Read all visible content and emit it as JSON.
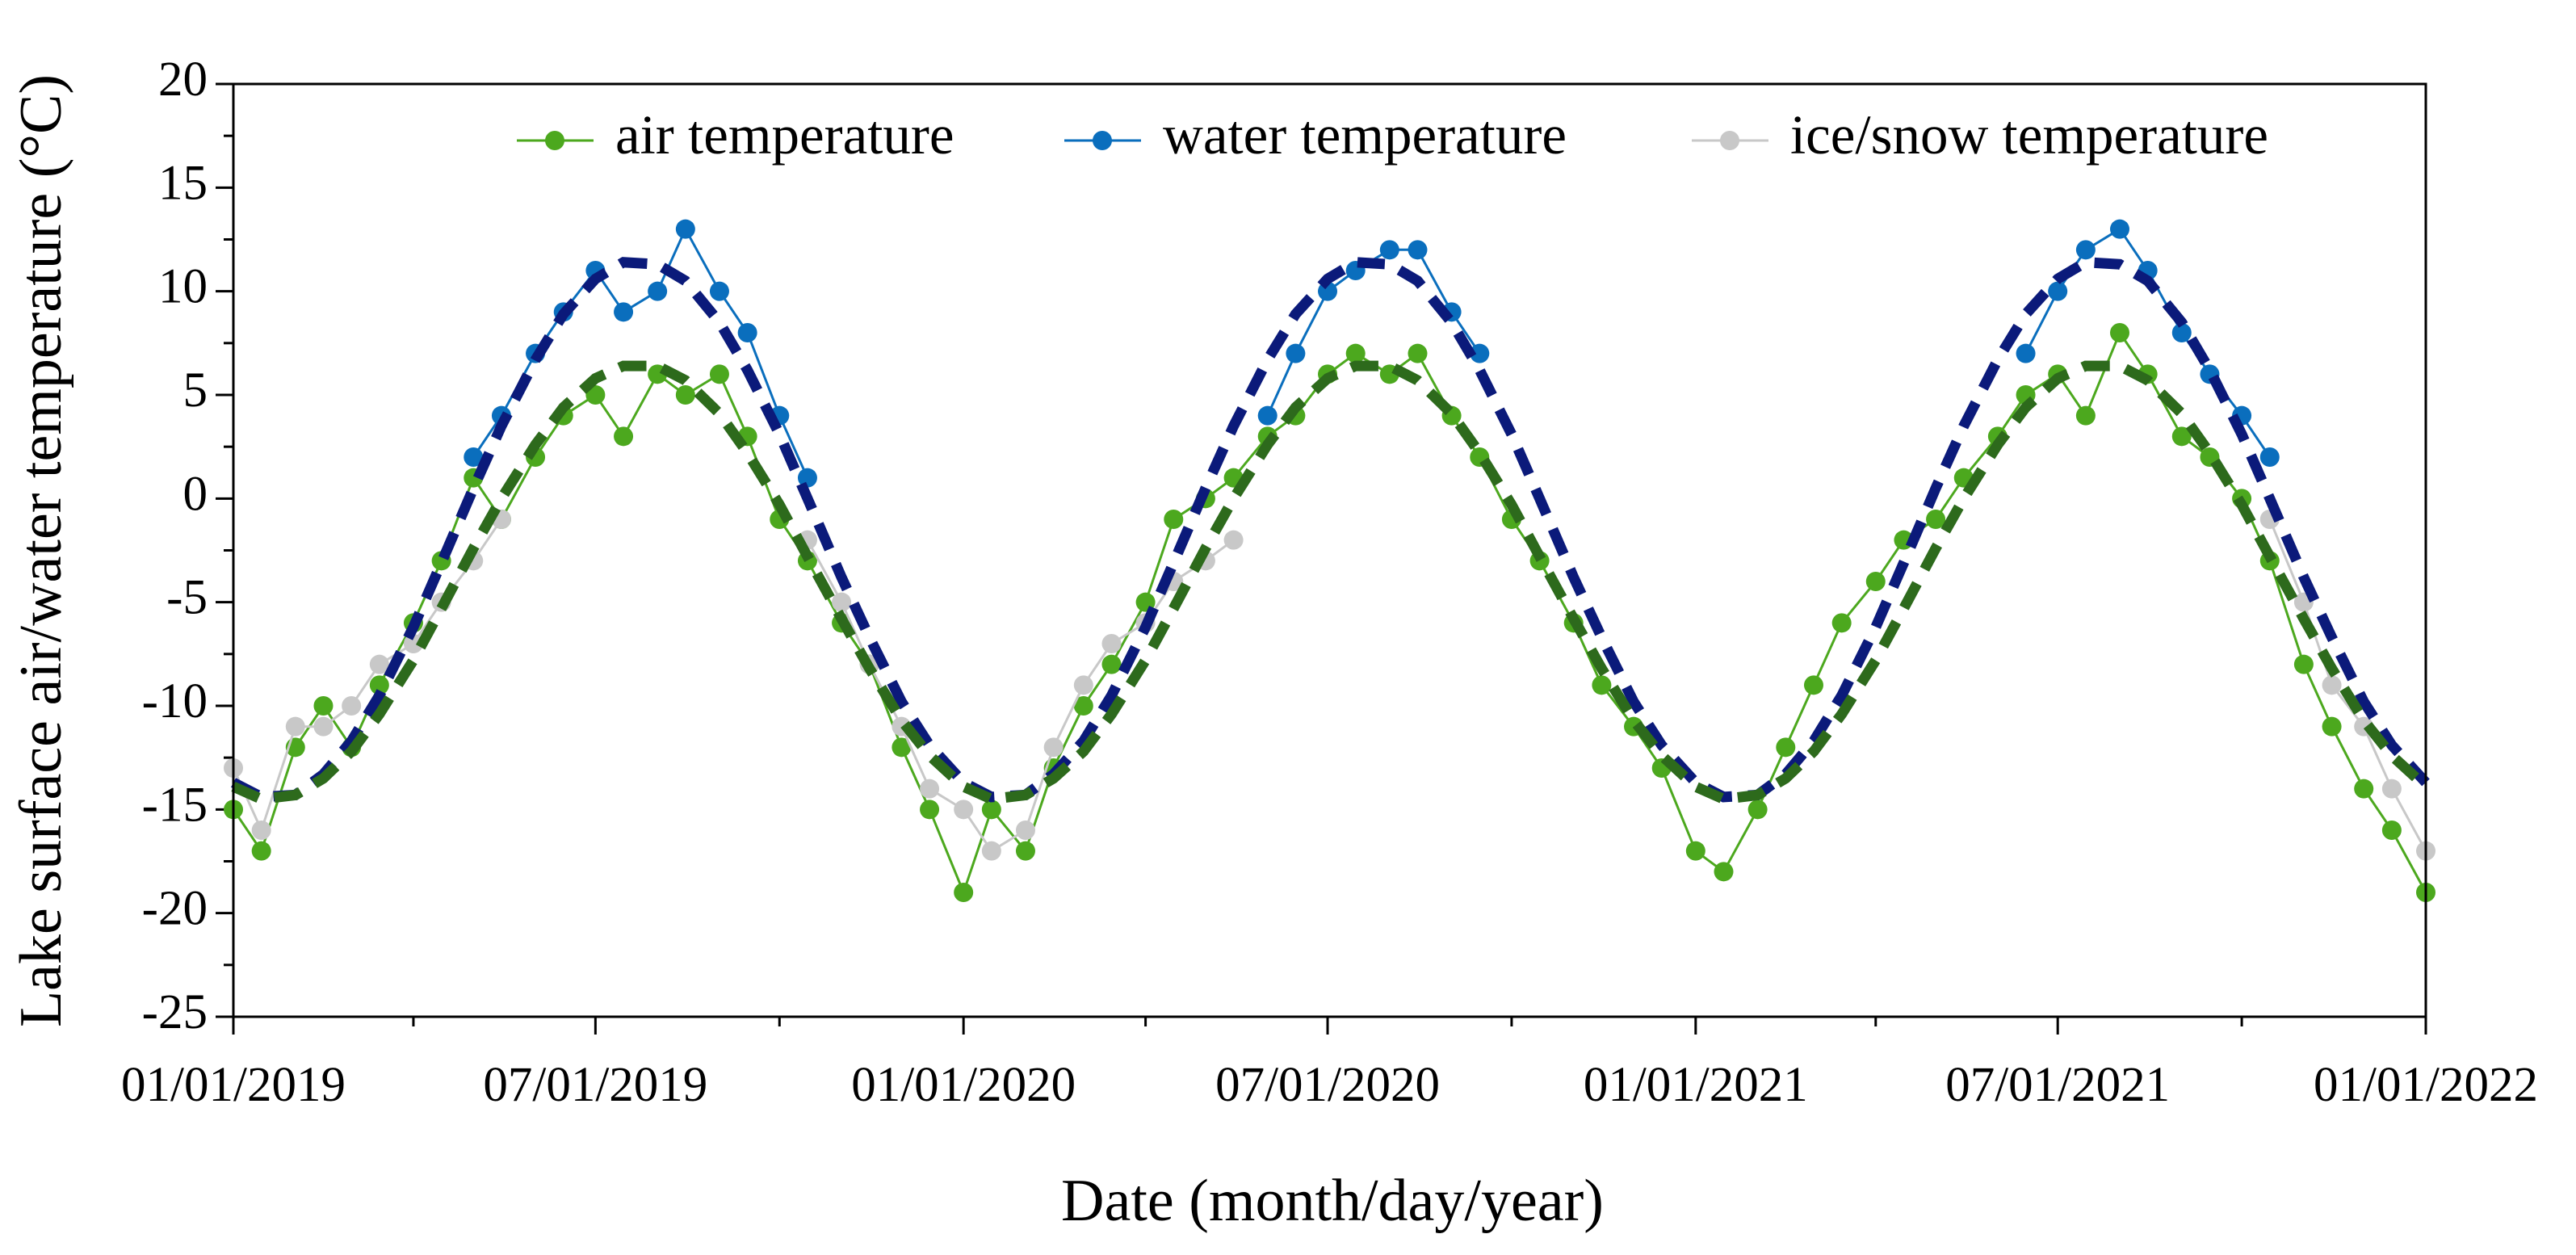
{
  "chart_data": {
    "type": "line",
    "xlabel": "Date (month/day/year)",
    "ylabel": "Lake surface air/water temperature (°C)",
    "x": [
      "01/01/2019",
      "01/15/2019",
      "02/01/2019",
      "02/15/2019",
      "03/01/2019",
      "03/15/2019",
      "04/01/2019",
      "04/15/2019",
      "05/01/2019",
      "05/15/2019",
      "06/01/2019",
      "06/15/2019",
      "07/01/2019",
      "07/15/2019",
      "08/01/2019",
      "08/15/2019",
      "09/01/2019",
      "09/15/2019",
      "10/01/2019",
      "10/15/2019",
      "11/01/2019",
      "11/15/2019",
      "12/01/2019",
      "12/15/2019",
      "01/01/2020",
      "01/15/2020",
      "02/01/2020",
      "02/15/2020",
      "03/01/2020",
      "03/15/2020",
      "04/01/2020",
      "04/15/2020",
      "05/01/2020",
      "05/15/2020",
      "06/01/2020",
      "06/15/2020",
      "07/01/2020",
      "07/15/2020",
      "08/01/2020",
      "08/15/2020",
      "09/01/2020",
      "09/15/2020",
      "10/01/2020",
      "10/15/2020",
      "11/01/2020",
      "11/15/2020",
      "12/01/2020",
      "12/15/2020",
      "01/01/2021",
      "01/15/2021",
      "02/01/2021",
      "02/15/2021",
      "03/01/2021",
      "03/15/2021",
      "04/01/2021",
      "04/15/2021",
      "05/01/2021",
      "05/15/2021",
      "06/01/2021",
      "06/15/2021",
      "07/01/2021",
      "07/15/2021",
      "08/01/2021",
      "08/15/2021",
      "09/01/2021",
      "09/15/2021",
      "10/01/2021",
      "10/15/2021",
      "11/01/2021",
      "11/15/2021",
      "12/01/2021",
      "12/15/2021",
      "01/01/2022"
    ],
    "series": [
      {
        "name": "air temperature",
        "color": "#4ca81e",
        "values": [
          -15,
          -17,
          -12,
          -10,
          -12,
          -9,
          -6,
          -3,
          1,
          -1,
          2,
          4,
          5,
          3,
          6,
          5,
          6,
          3,
          -1,
          -3,
          -6,
          -8,
          -12,
          -15,
          -19,
          -15,
          -17,
          -13,
          -10,
          -8,
          -5,
          -1,
          0,
          1,
          3,
          4,
          6,
          7,
          6,
          7,
          4,
          2,
          -1,
          -3,
          -6,
          -9,
          -11,
          -13,
          -17,
          -18,
          -15,
          -12,
          -9,
          -6,
          -4,
          -2,
          -1,
          1,
          3,
          5,
          6,
          4,
          8,
          6,
          3,
          2,
          0,
          -3,
          -8,
          -11,
          -14,
          -16,
          -19
        ]
      },
      {
        "name": "water temperature",
        "color": "#0a6ebd",
        "values": [
          null,
          null,
          null,
          null,
          null,
          null,
          null,
          null,
          2,
          4,
          7,
          9,
          11,
          9,
          10,
          13,
          10,
          8,
          4,
          1,
          null,
          null,
          null,
          null,
          null,
          null,
          null,
          null,
          null,
          null,
          null,
          null,
          null,
          null,
          4,
          7,
          10,
          11,
          12,
          12,
          9,
          7,
          null,
          null,
          null,
          null,
          null,
          null,
          null,
          null,
          null,
          null,
          null,
          null,
          null,
          null,
          null,
          null,
          null,
          7,
          10,
          12,
          13,
          11,
          8,
          6,
          4,
          2,
          null,
          null,
          null,
          null,
          null
        ]
      },
      {
        "name": "ice/snow temperature",
        "color": "#c8c8c8",
        "values": [
          -13,
          -16,
          -11,
          -11,
          -10,
          -8,
          -7,
          -5,
          -3,
          -1,
          null,
          null,
          null,
          null,
          null,
          null,
          null,
          null,
          null,
          -2,
          -5,
          -8,
          -11,
          -14,
          -15,
          -17,
          -16,
          -12,
          -9,
          -7,
          -6,
          -4,
          -3,
          -2,
          null,
          null,
          null,
          null,
          null,
          null,
          null,
          null,
          null,
          null,
          null,
          null,
          null,
          null,
          null,
          null,
          null,
          null,
          null,
          null,
          null,
          null,
          null,
          null,
          null,
          null,
          null,
          null,
          null,
          null,
          null,
          null,
          null,
          -1,
          -5,
          -9,
          -11,
          -14,
          -17
        ]
      },
      {
        "color": "#0b1a7a",
        "dashed": true,
        "values": [
          -13.7,
          -14.4,
          -14.3,
          -13.3,
          -11.7,
          -9.5,
          -6.2,
          -3.1,
          0.5,
          3.5,
          6.7,
          8.9,
          10.6,
          11.4,
          11.3,
          10.5,
          8.5,
          6.2,
          3.1,
          0,
          -3.8,
          -6.7,
          -9.8,
          -11.9,
          -13.7,
          -14.4,
          -14.3,
          -13.3,
          -11.7,
          -9.5,
          -6.2,
          -3.1,
          0.5,
          3.5,
          6.7,
          8.9,
          10.6,
          11.4,
          11.3,
          10.5,
          8.5,
          6.2,
          3.1,
          0,
          -3.8,
          -6.7,
          -9.8,
          -11.9,
          -13.7,
          -14.4,
          -14.3,
          -13.3,
          -11.7,
          -9.5,
          -6.2,
          -3.1,
          0.5,
          3.5,
          6.7,
          8.9,
          10.6,
          11.4,
          11.3,
          10.5,
          8.5,
          6.2,
          3.1,
          0,
          -3.8,
          -6.7,
          -9.8,
          -11.9,
          -13.7
        ]
      },
      {
        "color": "#2d6a1c",
        "dashed": true,
        "values": [
          -13.9,
          -14.5,
          -14.3,
          -13.5,
          -12.2,
          -10.4,
          -7.8,
          -5.3,
          -2.4,
          0,
          2.6,
          4.4,
          5.8,
          6.4,
          6.4,
          5.7,
          4.1,
          2.2,
          -0.3,
          -2.8,
          -5.8,
          -8.2,
          -10.7,
          -12.4,
          -13.9,
          -14.5,
          -14.3,
          -13.5,
          -12.2,
          -10.4,
          -7.8,
          -5.3,
          -2.4,
          0,
          2.6,
          4.4,
          5.8,
          6.4,
          6.4,
          5.7,
          4.1,
          2.2,
          -0.3,
          -2.8,
          -5.8,
          -8.2,
          -10.7,
          -12.4,
          -13.9,
          -14.5,
          -14.3,
          -13.5,
          -12.2,
          -10.4,
          -7.8,
          -5.3,
          -2.4,
          0,
          2.6,
          4.4,
          5.8,
          6.4,
          6.4,
          5.7,
          4.1,
          2.2,
          -0.3,
          -2.8,
          -5.8,
          -8.2,
          -10.7,
          -12.4,
          -13.9
        ]
      }
    ],
    "xlim": [
      "01/01/2019",
      "01/01/2022"
    ],
    "xticks": [
      "01/01/2019",
      "07/01/2019",
      "01/01/2020",
      "07/01/2020",
      "01/01/2021",
      "07/01/2021",
      "01/01/2022"
    ],
    "xminorticks": [
      "04/01/2019",
      "10/01/2019",
      "04/01/2020",
      "10/01/2020",
      "04/01/2021",
      "10/01/2021"
    ],
    "ylim": [
      -25,
      20
    ],
    "yticks": [
      -25,
      -20,
      -15,
      -10,
      -5,
      0,
      5,
      10,
      15,
      20
    ],
    "yminorticks": [
      -22.5,
      -17.5,
      -12.5,
      -7.5,
      -2.5,
      2.5,
      7.5,
      12.5,
      17.5
    ],
    "legend": "top-right"
  }
}
